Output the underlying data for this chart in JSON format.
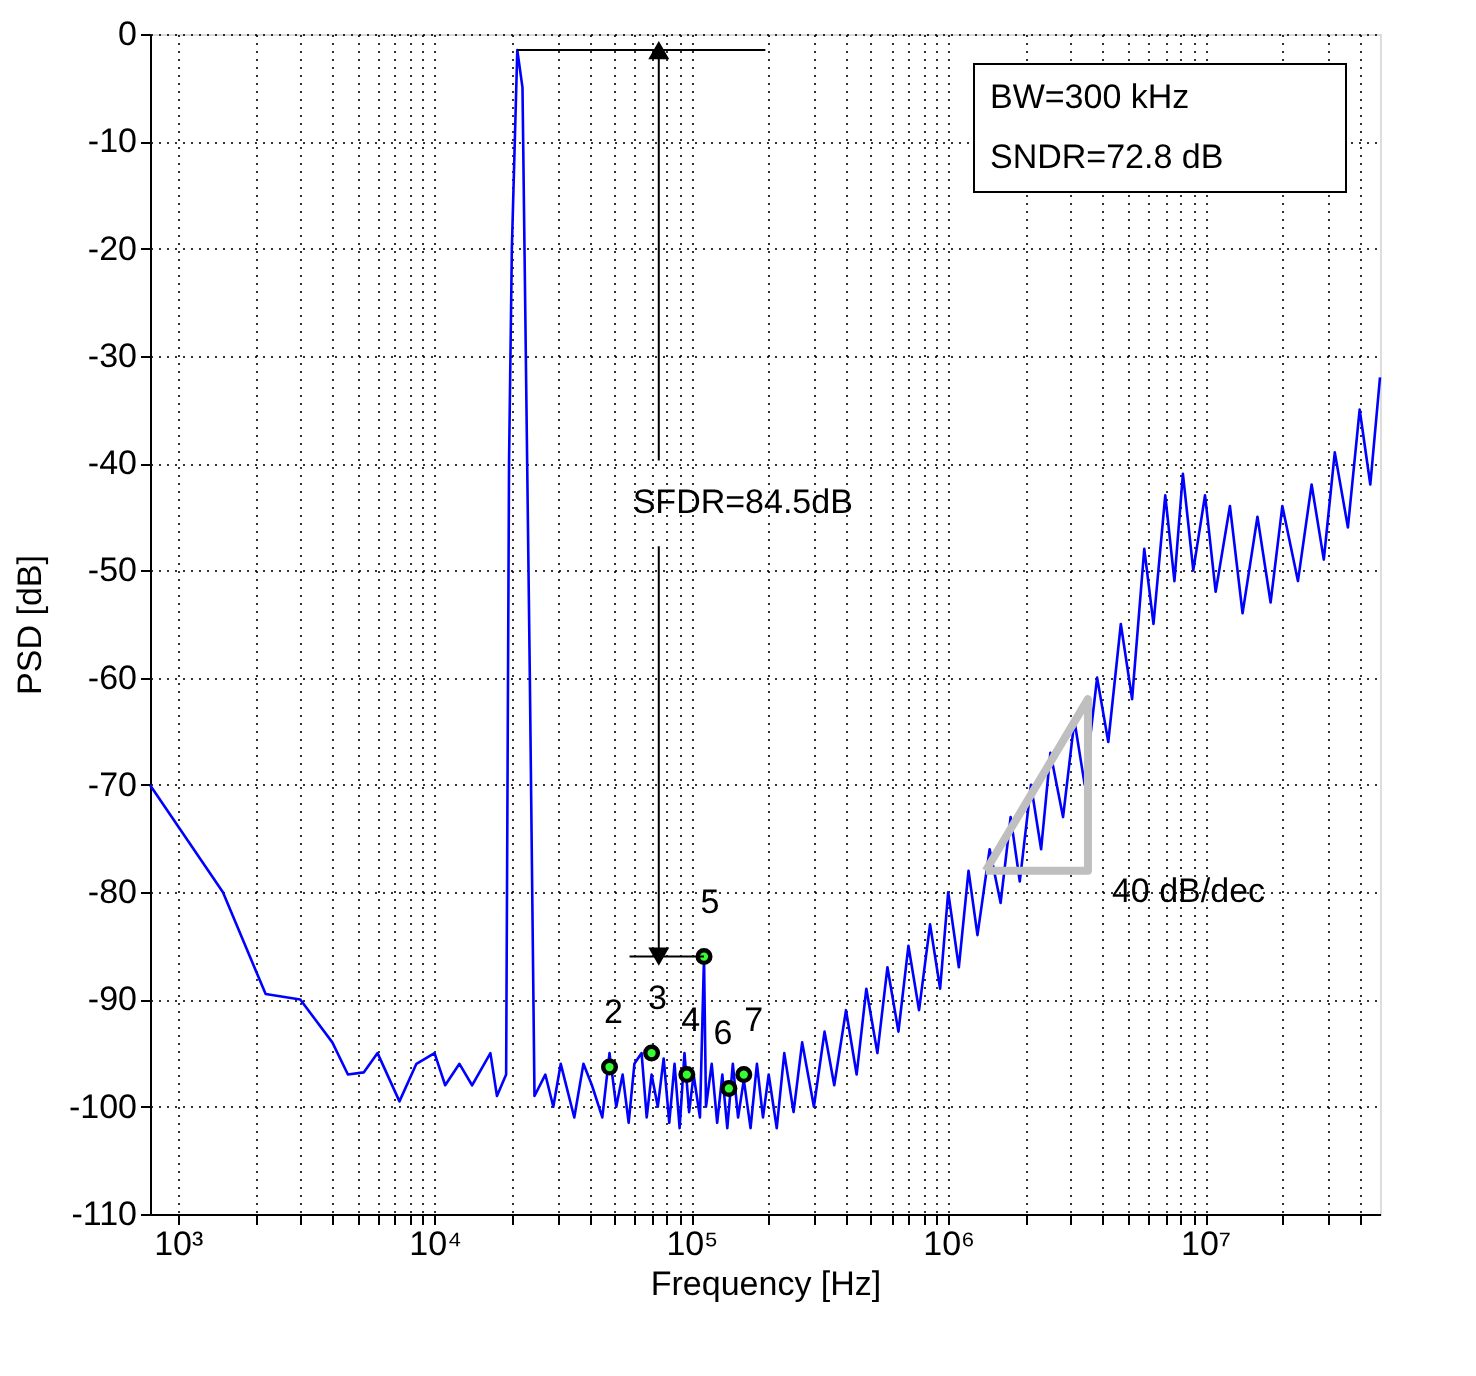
{
  "chart_data": {
    "type": "line",
    "xlabel": "Frequency [Hz]",
    "ylabel": "PSD [dB]",
    "log": "x",
    "grid": true,
    "marker": "none",
    "xlim": [
      780,
      48000000
    ],
    "ylim": [
      -110,
      0
    ],
    "xticks": [
      {
        "value": 1000,
        "label": "10³"
      },
      {
        "value": 2000,
        "label": null
      },
      {
        "value": 3000,
        "label": null
      },
      {
        "value": 4000,
        "label": null
      },
      {
        "value": 5000,
        "label": null
      },
      {
        "value": 6000,
        "label": null
      },
      {
        "value": 7000,
        "label": null
      },
      {
        "value": 8000,
        "label": null
      },
      {
        "value": 9000,
        "label": null
      },
      {
        "value": 10000,
        "label": "10⁴"
      },
      {
        "value": 20000,
        "label": null
      },
      {
        "value": 30000,
        "label": null
      },
      {
        "value": 40000,
        "label": null
      },
      {
        "value": 50000,
        "label": null
      },
      {
        "value": 60000,
        "label": null
      },
      {
        "value": 70000,
        "label": null
      },
      {
        "value": 80000,
        "label": null
      },
      {
        "value": 90000,
        "label": null
      },
      {
        "value": 100000,
        "label": "10⁵"
      },
      {
        "value": 200000,
        "label": null
      },
      {
        "value": 300000,
        "label": null
      },
      {
        "value": 400000,
        "label": null
      },
      {
        "value": 500000,
        "label": null
      },
      {
        "value": 600000,
        "label": null
      },
      {
        "value": 700000,
        "label": null
      },
      {
        "value": 800000,
        "label": null
      },
      {
        "value": 900000,
        "label": null
      },
      {
        "value": 1000000,
        "label": "10⁶"
      },
      {
        "value": 2000000,
        "label": null
      },
      {
        "value": 3000000,
        "label": null
      },
      {
        "value": 4000000,
        "label": null
      },
      {
        "value": 5000000,
        "label": null
      },
      {
        "value": 6000000,
        "label": null
      },
      {
        "value": 7000000,
        "label": null
      },
      {
        "value": 8000000,
        "label": null
      },
      {
        "value": 9000000,
        "label": null
      },
      {
        "value": 10000000,
        "label": "10⁷"
      },
      {
        "value": 20000000,
        "label": null
      },
      {
        "value": 30000000,
        "label": null
      },
      {
        "value": 40000000,
        "label": null
      }
    ],
    "yticks": [
      0,
      -10,
      -20,
      -30,
      -40,
      -50,
      -60,
      -70,
      -80,
      -90,
      -100,
      -110
    ],
    "series": [
      {
        "color": "#0000ff",
        "x": [
          780,
          1500,
          2200,
          3000,
          4000,
          4600,
          5300,
          6000,
          7300,
          8500,
          10000,
          11000,
          12500,
          14000,
          16500,
          17500,
          19000,
          19500,
          20000,
          21000,
          22000,
          23500,
          24500,
          27000,
          29000,
          31000,
          35000,
          38000,
          41000,
          45000,
          48000,
          51000,
          54000,
          57000,
          60000,
          64000,
          67000,
          70000,
          74000,
          78000,
          82000,
          86000,
          90000,
          94000,
          98000,
          102000,
          108000,
          112000,
          114000,
          120000,
          126000,
          132000,
          138000,
          145000,
          152000,
          160000,
          170000,
          180000,
          190000,
          200000,
          215000,
          230000,
          250000,
          270000,
          300000,
          330000,
          360000,
          400000,
          440000,
          480000,
          530000,
          580000,
          640000,
          700000,
          770000,
          850000,
          930000,
          1000000,
          1100000,
          1200000,
          1300000,
          1450000,
          1600000,
          1750000,
          1900000,
          2100000,
          2300000,
          2500000,
          2800000,
          3100000,
          3400000,
          3800000,
          4200000,
          4700000,
          5200000,
          5800000,
          6300000,
          7000000,
          7600000,
          8200000,
          9000000,
          10000000,
          11000000,
          12500000,
          14000000,
          16000000,
          18000000,
          20000000,
          23000000,
          26000000,
          29000000,
          32000000,
          36000000,
          40000000,
          44000000,
          48000000
        ],
        "values": [
          -70,
          -80,
          -89.5,
          -90,
          -94,
          -97,
          -96.8,
          -95,
          -99.5,
          -96,
          -95,
          -98,
          -96,
          -98,
          -95,
          -99,
          -97,
          -40,
          -20,
          -1.5,
          -5,
          -60,
          -99,
          -97,
          -100,
          -96,
          -101,
          -96,
          -98,
          -101,
          -95,
          -100,
          -97,
          -101.5,
          -96,
          -95,
          -101,
          -97,
          -100,
          -95.5,
          -101.5,
          -96,
          -102,
          -95,
          -100.5,
          -97,
          -101,
          -86,
          -100,
          -96,
          -101.5,
          -97,
          -102,
          -96,
          -101,
          -97.5,
          -102,
          -96,
          -101,
          -97,
          -102,
          -95,
          -100.5,
          -94,
          -100,
          -93,
          -98,
          -91,
          -97,
          -89,
          -95,
          -87,
          -93,
          -85,
          -91,
          -83,
          -89,
          -80,
          -87,
          -78,
          -84,
          -76,
          -81,
          -73,
          -79,
          -70,
          -76,
          -67,
          -73,
          -64,
          -70,
          -60,
          -66,
          -55,
          -62,
          -48,
          -55,
          -43,
          -51,
          -41,
          -50,
          -43,
          -52,
          -44,
          -54,
          -45,
          -53,
          -44,
          -51,
          -42,
          -49,
          -39,
          -46,
          -35,
          -42,
          -32
        ]
      },
      {
        "type": "scatter",
        "marker": "circle",
        "color": "#33ff33",
        "x": [
          48000,
          70000,
          96000,
          112000,
          140000,
          160000
        ],
        "values": [
          -96.3,
          -95,
          -97,
          -86,
          -98.3,
          -97
        ]
      }
    ],
    "annotations": [
      "SFDR=84.5dB",
      "BW=300 kHz",
      "SNDR=72.8 dB",
      "40 dB/dec",
      {
        "text": "2",
        "x": 48000,
        "y": -96.3
      },
      {
        "text": "3",
        "x": 70000,
        "y": -95
      },
      {
        "text": "4",
        "x": 96000,
        "y": -97
      },
      {
        "text": "5",
        "x": 112000,
        "y": -86
      },
      {
        "text": "6",
        "x": 140000,
        "y": -98.3
      },
      {
        "text": "7",
        "x": 160000,
        "y": -97
      }
    ]
  }
}
